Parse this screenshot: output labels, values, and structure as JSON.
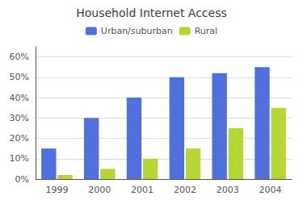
{
  "chart_data": {
    "type": "bar",
    "title": "Household Internet Access",
    "categories": [
      "1999",
      "2000",
      "2001",
      "2002",
      "2003",
      "2004"
    ],
    "series": [
      {
        "name": "Urban/suburban",
        "values": [
          15,
          30,
          40,
          50,
          52,
          55
        ]
      },
      {
        "name": "Rural",
        "values": [
          2,
          5,
          10,
          15,
          25,
          35
        ]
      }
    ],
    "ylim": [
      0,
      65
    ],
    "yticks": [
      {
        "value": 0,
        "label": "0%"
      },
      {
        "value": 10,
        "label": "10%"
      },
      {
        "value": 20,
        "label": "20%"
      },
      {
        "value": 30,
        "label": "30%"
      },
      {
        "value": 40,
        "label": "40%"
      },
      {
        "value": 50,
        "label": "50%"
      },
      {
        "value": 60,
        "label": "60%"
      }
    ],
    "grid": true,
    "legend": "top"
  }
}
